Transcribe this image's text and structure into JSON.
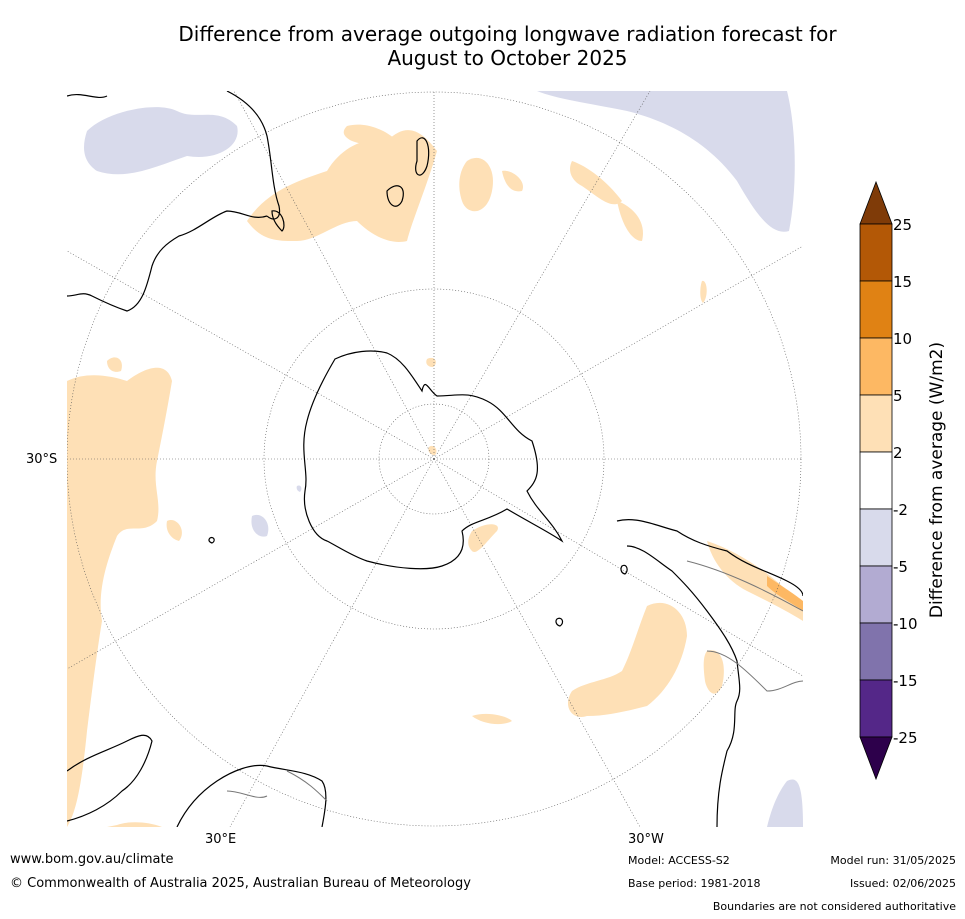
{
  "title_line1": "Difference from average outgoing longwave radiation forecast for",
  "title_line2": "August to October 2025",
  "labels": {
    "lat_30s": "30°S",
    "lon_30e": "30°E",
    "lon_30w": "30°W"
  },
  "colorbar": {
    "label": "Difference from average (W/m2)",
    "ticks": [
      "25",
      "15",
      "10",
      "5",
      "2",
      "-2",
      "-5",
      "-10",
      "-15",
      "-25"
    ],
    "colors": {
      "above_25": "#7f3b08",
      "15_25": "#b35806",
      "10_15": "#e08214",
      "5_10": "#fdb863",
      "2_5": "#fee0b6",
      "-2_2": "#ffffff",
      "-5_-2": "#d8daeb",
      "-10_-5": "#b2abd2",
      "-15_-10": "#8073ac",
      "-25_-15": "#542788",
      "below_-25": "#2d004b"
    }
  },
  "footer": {
    "website": "www.bom.gov.au/climate",
    "copyright": "© Commonwealth of Australia 2025, Australian Bureau of Meteorology",
    "model": "Model: ACCESS-S2",
    "base_period": "Base period: 1981-2018",
    "model_run": "Model run: 31/05/2025",
    "issued": "Issued: 02/06/2025",
    "boundaries": "Boundaries are not considered authoritative"
  }
}
